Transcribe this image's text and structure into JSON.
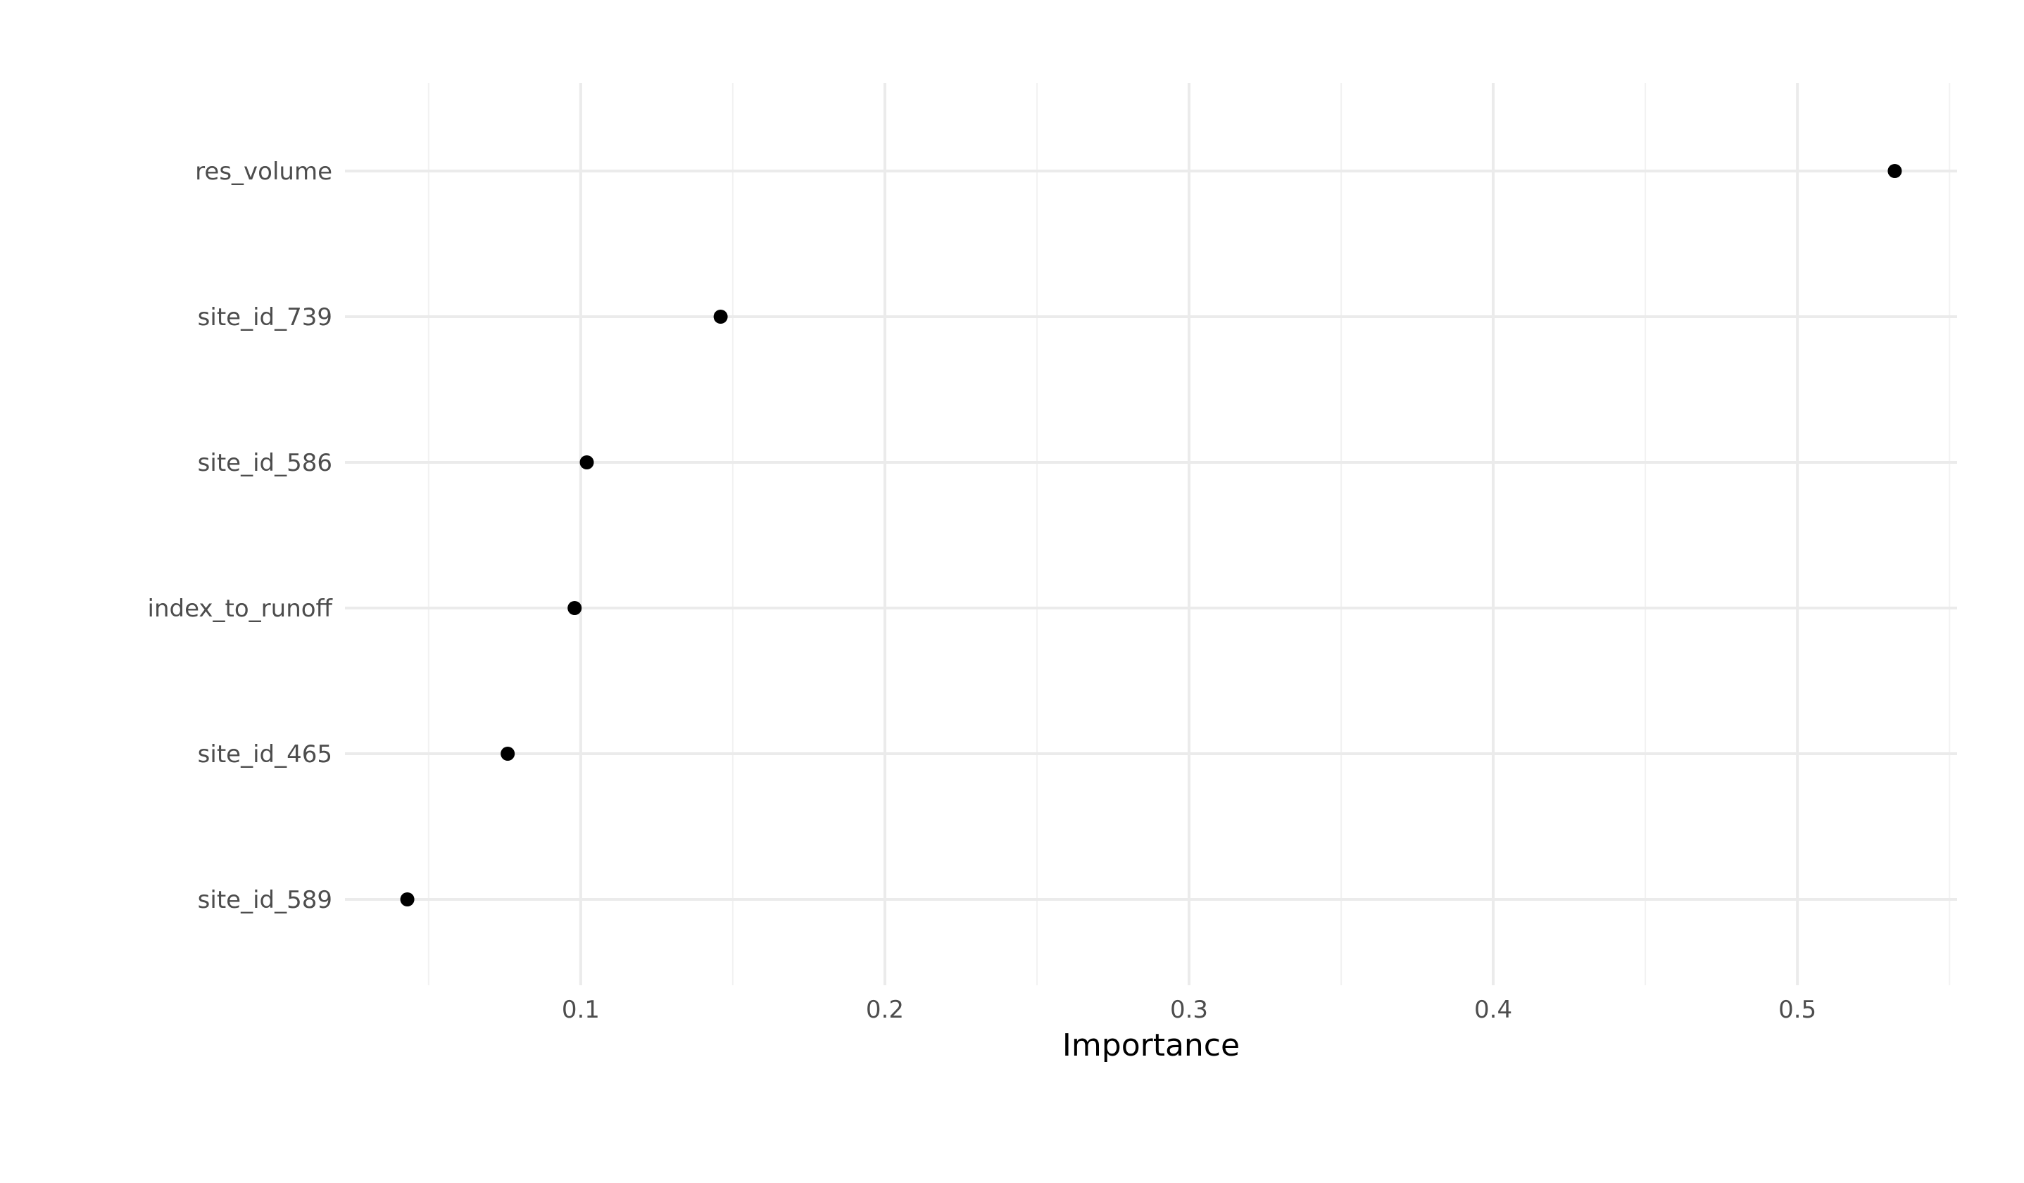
{
  "chart_data": {
    "type": "scatter",
    "title": "",
    "xlabel": "Importance",
    "ylabel": "",
    "categories": [
      "res_volume",
      "site_id_739",
      "site_id_586",
      "index_to_runoff",
      "site_id_465",
      "site_id_589"
    ],
    "values": [
      0.532,
      0.146,
      0.102,
      0.098,
      0.076,
      0.043
    ],
    "xlim": [
      0.0225,
      0.5525
    ],
    "xticks": [
      0.1,
      0.2,
      0.3,
      0.4,
      0.5
    ],
    "xtick_labels": [
      "0.1",
      "0.2",
      "0.3",
      "0.4",
      "0.5"
    ],
    "grid": true,
    "legend": "none",
    "colors": {
      "point": "#000000",
      "grid_major": "#ebebeb",
      "grid_minor": "#f2f2f2",
      "label": "#4d4d4d",
      "title": "#000000"
    }
  }
}
